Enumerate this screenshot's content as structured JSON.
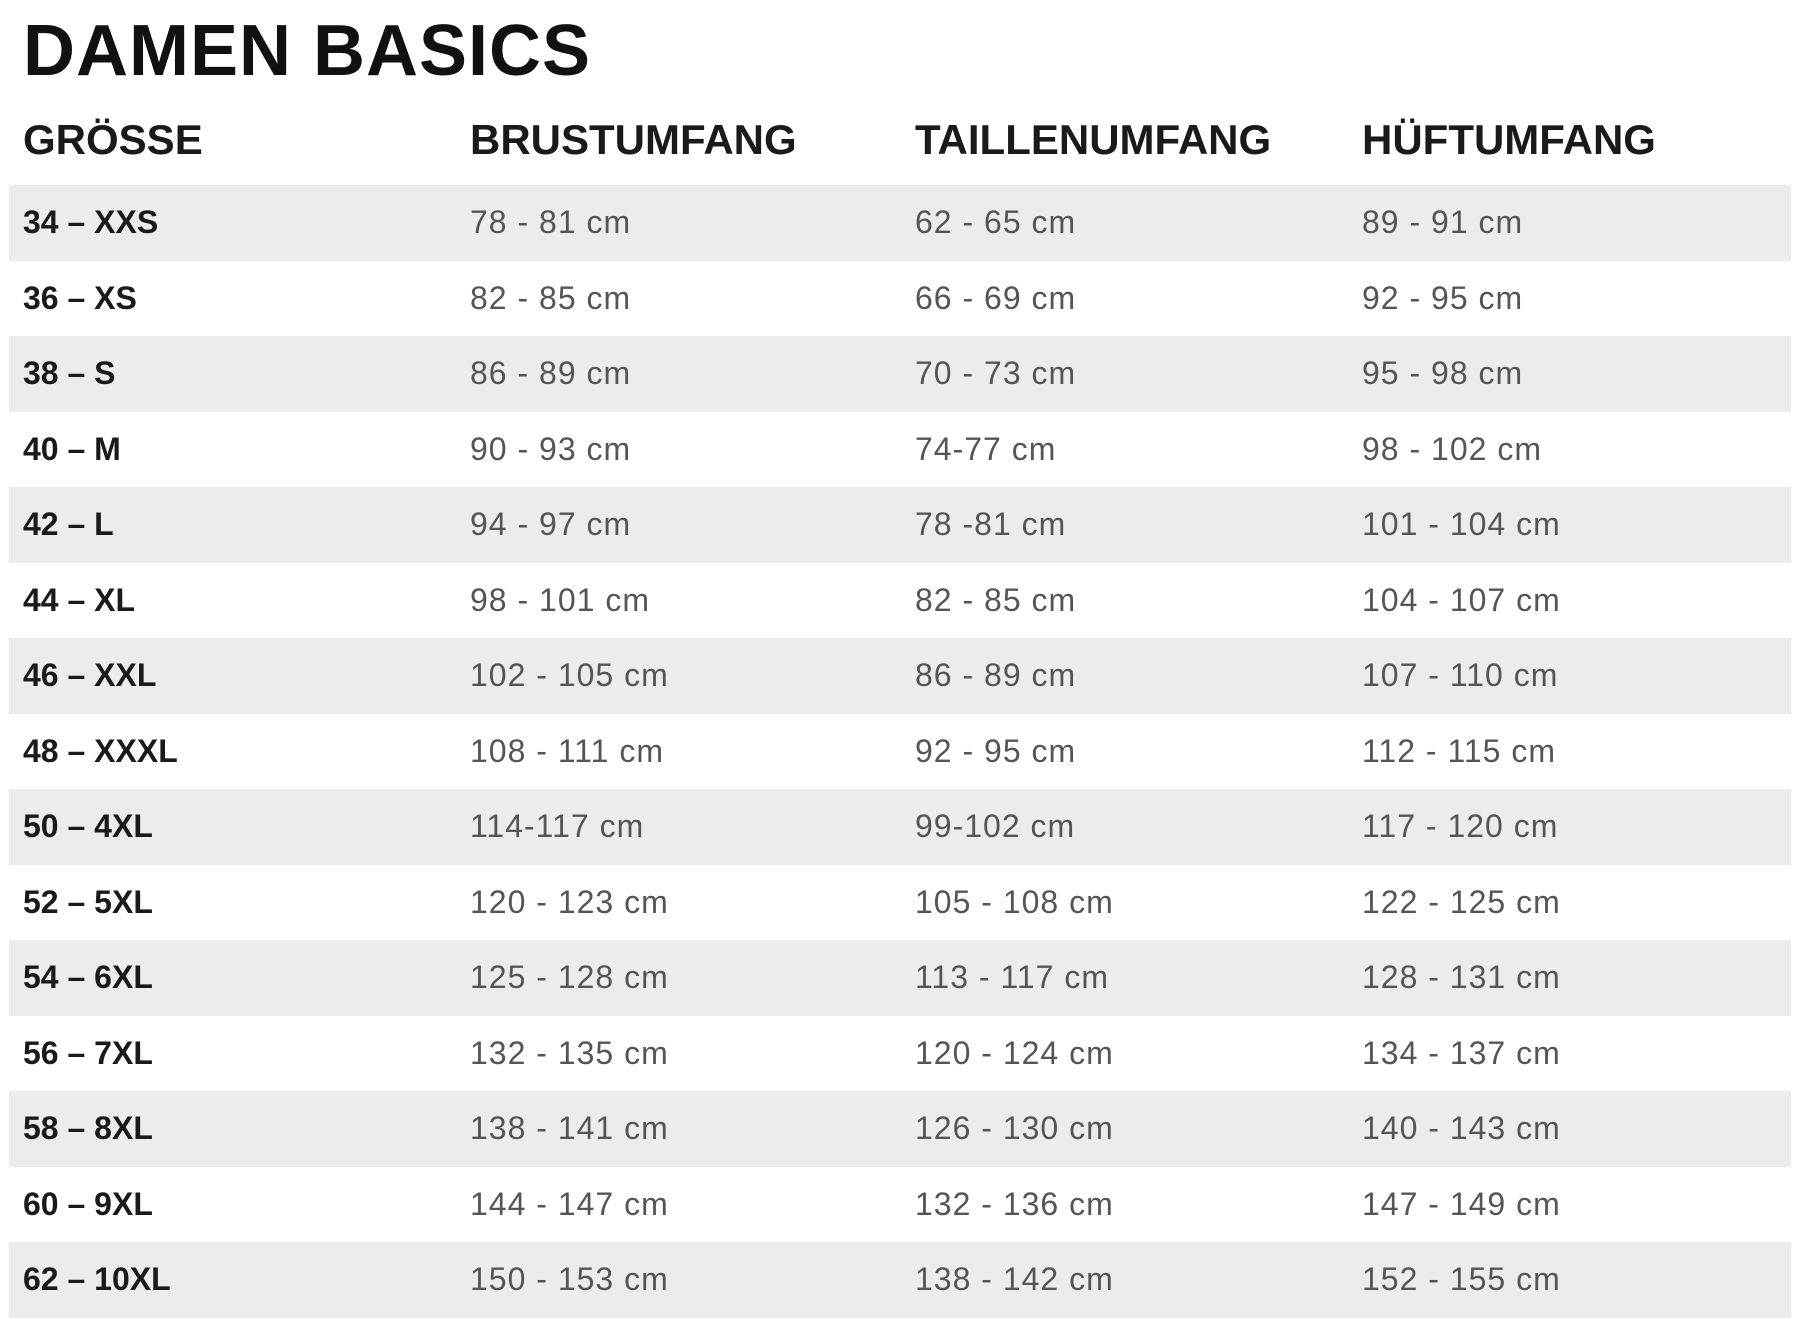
{
  "title": "DAMEN BASICS",
  "table": {
    "headers": [
      "GRÖSSE",
      "BRUSTUMFANG",
      "TAILLENUMFANG",
      "HÜFTUMFANG"
    ],
    "rows": [
      [
        "34 – XXS",
        "78 - 81 cm",
        "62 - 65 cm",
        "89 - 91 cm"
      ],
      [
        "36 – XS",
        "82 - 85 cm",
        "66 - 69 cm",
        "92 - 95 cm"
      ],
      [
        "38 – S",
        "86 - 89 cm",
        "70 - 73 cm",
        "95 - 98 cm"
      ],
      [
        "40 – M",
        "90 - 93 cm",
        "74-77 cm",
        "98 - 102 cm"
      ],
      [
        "42 – L",
        "94 - 97 cm",
        "78 -81 cm",
        "101 - 104 cm"
      ],
      [
        "44 – XL",
        "98 - 101 cm",
        "82 - 85 cm",
        "104 - 107 cm"
      ],
      [
        "46 – XXL",
        "102 - 105 cm",
        "86 - 89 cm",
        "107 - 110 cm"
      ],
      [
        "48 – XXXL",
        "108 - 111 cm",
        "92 - 95 cm",
        "112 - 115 cm"
      ],
      [
        "50 – 4XL",
        "114-117 cm",
        "99-102 cm",
        "117 - 120 cm"
      ],
      [
        "52 – 5XL",
        "120 - 123 cm",
        "105 - 108 cm",
        "122 - 125 cm"
      ],
      [
        "54 – 6XL",
        "125 - 128 cm",
        "113 - 117 cm",
        "128 - 131 cm"
      ],
      [
        "56 – 7XL",
        "132 - 135 cm",
        "120 - 124 cm",
        "134 - 137 cm"
      ],
      [
        "58 – 8XL",
        "138 - 141 cm",
        "126 - 130 cm",
        "140 - 143 cm"
      ],
      [
        "60 – 9XL",
        "144 - 147 cm",
        "132 - 136 cm",
        "147 - 149 cm"
      ],
      [
        "62 – 10XL",
        "150 - 153 cm",
        "138 - 142 cm",
        "152 - 155 cm"
      ]
    ]
  }
}
